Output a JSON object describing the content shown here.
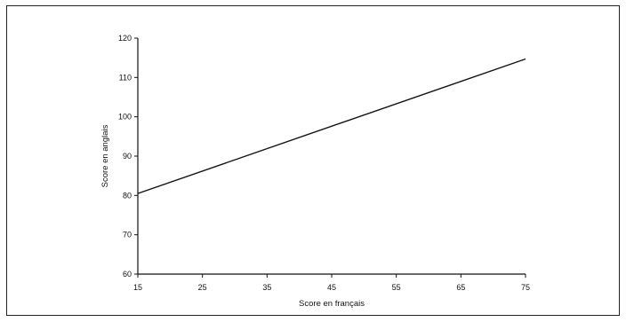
{
  "chart_data": {
    "type": "line",
    "xlabel": "Score en français",
    "ylabel": "Score en anglais",
    "xlim": [
      15,
      75
    ],
    "ylim": [
      60,
      120
    ],
    "xticks": [
      15,
      25,
      35,
      45,
      55,
      65,
      75
    ],
    "yticks": [
      60,
      70,
      80,
      90,
      100,
      110,
      120
    ],
    "grid": false,
    "series": [
      {
        "x": [
          15,
          75
        ],
        "y": [
          80.5,
          114.7
        ]
      }
    ],
    "colors": {
      "line": "#111111",
      "axis": "#111111"
    }
  }
}
